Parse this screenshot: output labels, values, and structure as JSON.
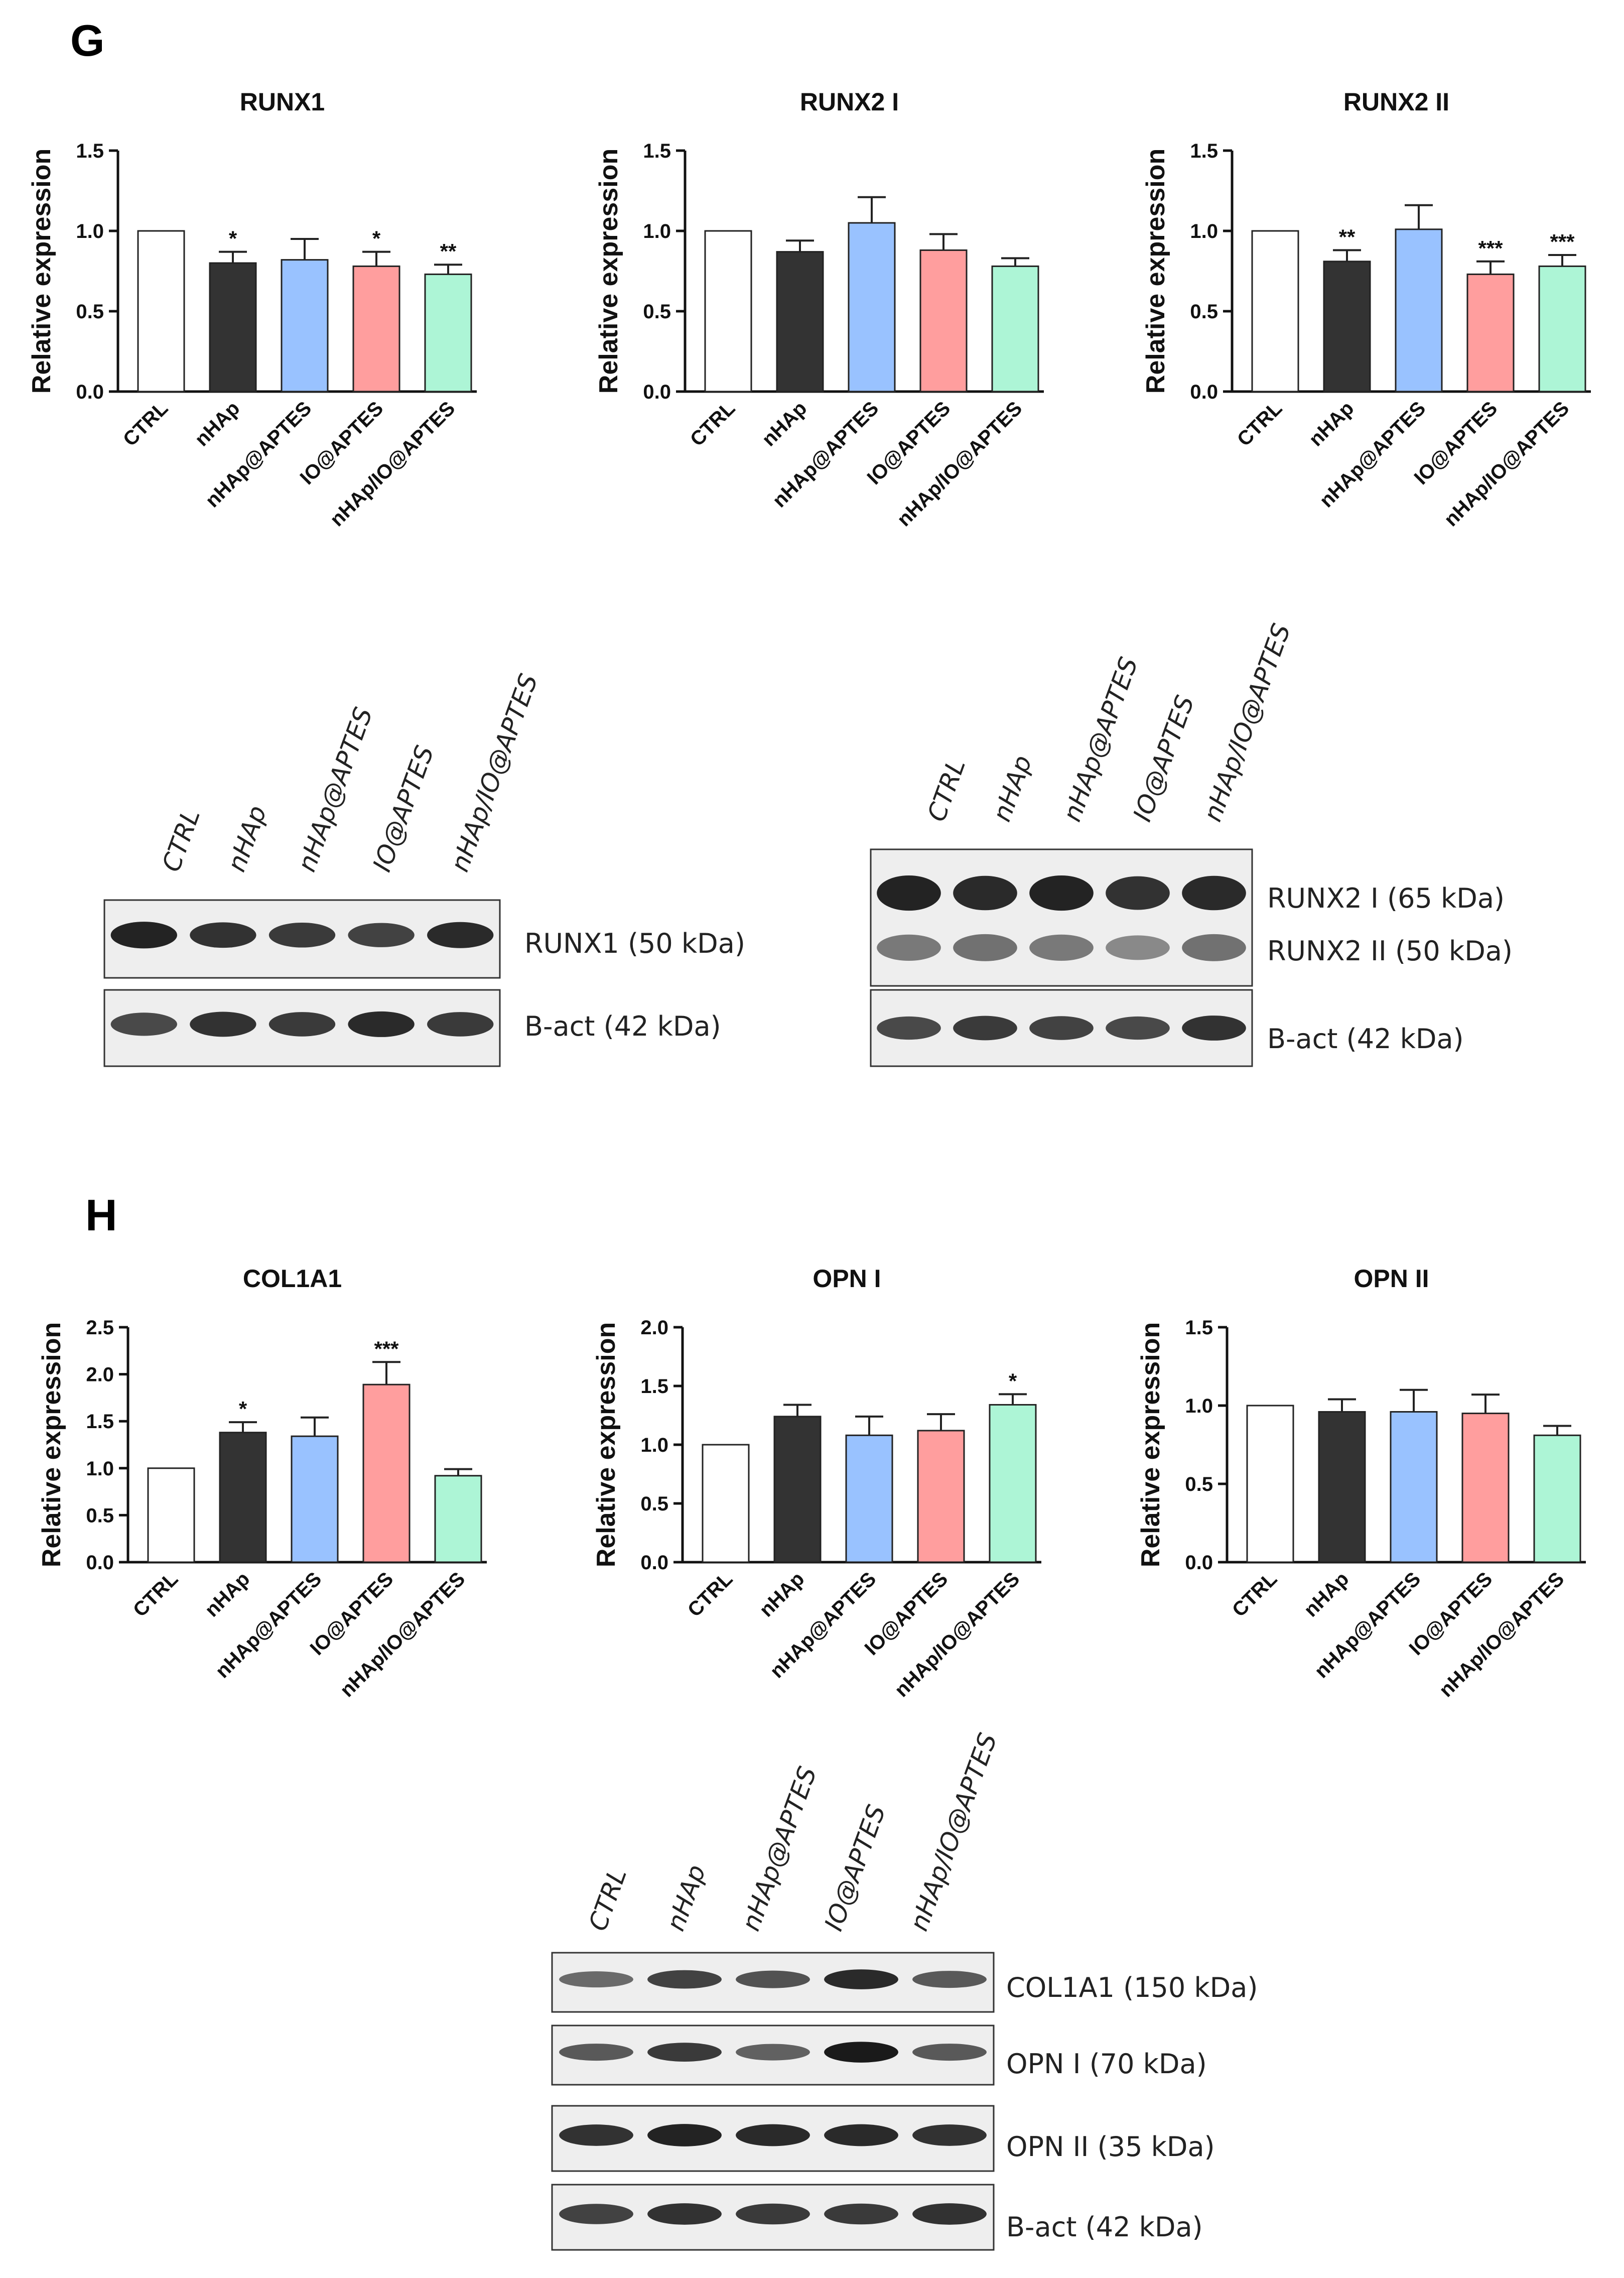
{
  "panels": {
    "G": {
      "letter": "G"
    },
    "H": {
      "letter": "H"
    }
  },
  "colors": {
    "CTRL": "#ffffff",
    "nHAp": "#333333",
    "nHAp@APTES": "#99c2ff",
    "IO@APTES": "#ff9e9e",
    "nHAp/IO@APTES": "#adf5d6",
    "axis": "#111111",
    "blot_bg": "#eeeeee",
    "band": "#1a1a1a"
  },
  "chart_data": [
    {
      "type": "bar",
      "panel": "G",
      "title": "RUNX1",
      "xlabel": "",
      "ylabel": "Relative expression",
      "categories": [
        "CTRL",
        "nHAp",
        "nHAp@APTES",
        "IO@APTES",
        "nHAp/IO@APTES"
      ],
      "values": [
        1.0,
        0.8,
        0.82,
        0.78,
        0.73
      ],
      "errors": [
        0.0,
        0.07,
        0.13,
        0.09,
        0.06
      ],
      "significance": [
        "",
        "*",
        "",
        "*",
        "**"
      ],
      "ylim": [
        0,
        1.5
      ],
      "yticks": [
        "0.0",
        "0.5",
        "1.0",
        "1.5"
      ]
    },
    {
      "type": "bar",
      "panel": "G",
      "title": "RUNX2 I",
      "xlabel": "",
      "ylabel": "Relative expression",
      "categories": [
        "CTRL",
        "nHAp",
        "nHAp@APTES",
        "IO@APTES",
        "nHAp/IO@APTES"
      ],
      "values": [
        1.0,
        0.87,
        1.05,
        0.88,
        0.78
      ],
      "errors": [
        0.0,
        0.07,
        0.16,
        0.1,
        0.05
      ],
      "significance": [
        "",
        "",
        "",
        "",
        ""
      ],
      "ylim": [
        0,
        1.5
      ],
      "yticks": [
        "0.0",
        "0.5",
        "1.0",
        "1.5"
      ]
    },
    {
      "type": "bar",
      "panel": "G",
      "title": "RUNX2 II",
      "xlabel": "",
      "ylabel": "Relative expression",
      "categories": [
        "CTRL",
        "nHAp",
        "nHAp@APTES",
        "IO@APTES",
        "nHAp/IO@APTES"
      ],
      "values": [
        1.0,
        0.81,
        1.01,
        0.73,
        0.78
      ],
      "errors": [
        0.0,
        0.07,
        0.15,
        0.08,
        0.07
      ],
      "significance": [
        "",
        "**",
        "",
        "***",
        "***"
      ],
      "ylim": [
        0,
        1.5
      ],
      "yticks": [
        "0.0",
        "0.5",
        "1.0",
        "1.5"
      ]
    },
    {
      "type": "bar",
      "panel": "H",
      "title": "COL1A1",
      "xlabel": "",
      "ylabel": "Relative expression",
      "categories": [
        "CTRL",
        "nHAp",
        "nHAp@APTES",
        "IO@APTES",
        "nHAp/IO@APTES"
      ],
      "values": [
        1.0,
        1.38,
        1.34,
        1.89,
        0.92
      ],
      "errors": [
        0.0,
        0.11,
        0.2,
        0.24,
        0.07
      ],
      "significance": [
        "",
        "*",
        "",
        "***",
        ""
      ],
      "ylim": [
        0,
        2.5
      ],
      "yticks": [
        "0.0",
        "0.5",
        "1.0",
        "1.5",
        "2.0",
        "2.5"
      ]
    },
    {
      "type": "bar",
      "panel": "H",
      "title": "OPN I",
      "xlabel": "",
      "ylabel": "Relative expression",
      "categories": [
        "CTRL",
        "nHAp",
        "nHAp@APTES",
        "IO@APTES",
        "nHAp/IO@APTES"
      ],
      "values": [
        1.0,
        1.24,
        1.08,
        1.12,
        1.34
      ],
      "errors": [
        0.0,
        0.1,
        0.16,
        0.14,
        0.09
      ],
      "significance": [
        "",
        "",
        "",
        "",
        "*"
      ],
      "ylim": [
        0,
        2.0
      ],
      "yticks": [
        "0.0",
        "0.5",
        "1.0",
        "1.5",
        "2.0"
      ]
    },
    {
      "type": "bar",
      "panel": "H",
      "title": "OPN II",
      "xlabel": "",
      "ylabel": "Relative expression",
      "categories": [
        "CTRL",
        "nHAp",
        "nHAp@APTES",
        "IO@APTES",
        "nHAp/IO@APTES"
      ],
      "values": [
        1.0,
        0.96,
        0.96,
        0.95,
        0.81
      ],
      "errors": [
        0.0,
        0.08,
        0.14,
        0.12,
        0.06
      ],
      "significance": [
        "",
        "",
        "",
        "",
        ""
      ],
      "ylim": [
        0,
        1.5
      ],
      "yticks": [
        "0.0",
        "0.5",
        "1.0",
        "1.5"
      ]
    }
  ],
  "blots": [
    {
      "lanes": [
        "CTRL",
        "nHAp",
        "nHAp@APTES",
        "IO@APTES",
        "nHAp/IO@APTES"
      ],
      "strips": [
        {
          "labels": [
            "RUNX1 (50 kDa)"
          ],
          "rows": [
            [
              0.95,
              0.85,
              0.8,
              0.75,
              0.9
            ]
          ]
        },
        {
          "labels": [
            "B-act (42 kDa)"
          ],
          "rows": [
            [
              0.7,
              0.85,
              0.8,
              0.9,
              0.8
            ]
          ]
        }
      ]
    },
    {
      "lanes": [
        "CTRL",
        "nHAp",
        "nHAp@APTES",
        "IO@APTES",
        "nHAp/IO@APTES"
      ],
      "strips": [
        {
          "labels": [
            "RUNX2 I (65 kDa)",
            "RUNX2 II (50 kDa)"
          ],
          "rows": [
            [
              0.95,
              0.9,
              0.95,
              0.85,
              0.9
            ],
            [
              0.4,
              0.45,
              0.4,
              0.3,
              0.45
            ]
          ]
        },
        {
          "labels": [
            "B-act (42 kDa)"
          ],
          "rows": [
            [
              0.7,
              0.8,
              0.75,
              0.7,
              0.85
            ]
          ]
        }
      ]
    },
    {
      "lanes": [
        "CTRL",
        "nHAp",
        "nHAp@APTES",
        "IO@APTES",
        "nHAp/IO@APTES"
      ],
      "strips": [
        {
          "labels": [
            "COL1A1 (150 kDa)"
          ],
          "rows": [
            [
              0.5,
              0.75,
              0.65,
              0.9,
              0.6
            ]
          ]
        },
        {
          "labels": [
            "OPN I (70 kDa)"
          ],
          "rows": [
            [
              0.6,
              0.8,
              0.55,
              1.0,
              0.6
            ]
          ]
        },
        {
          "labels": [
            "OPN II (35 kDa)"
          ],
          "rows": [
            [
              0.85,
              0.95,
              0.9,
              0.9,
              0.85
            ]
          ]
        },
        {
          "labels": [
            "B-act (42 kDa)"
          ],
          "rows": [
            [
              0.75,
              0.85,
              0.8,
              0.8,
              0.85
            ]
          ]
        }
      ]
    }
  ]
}
